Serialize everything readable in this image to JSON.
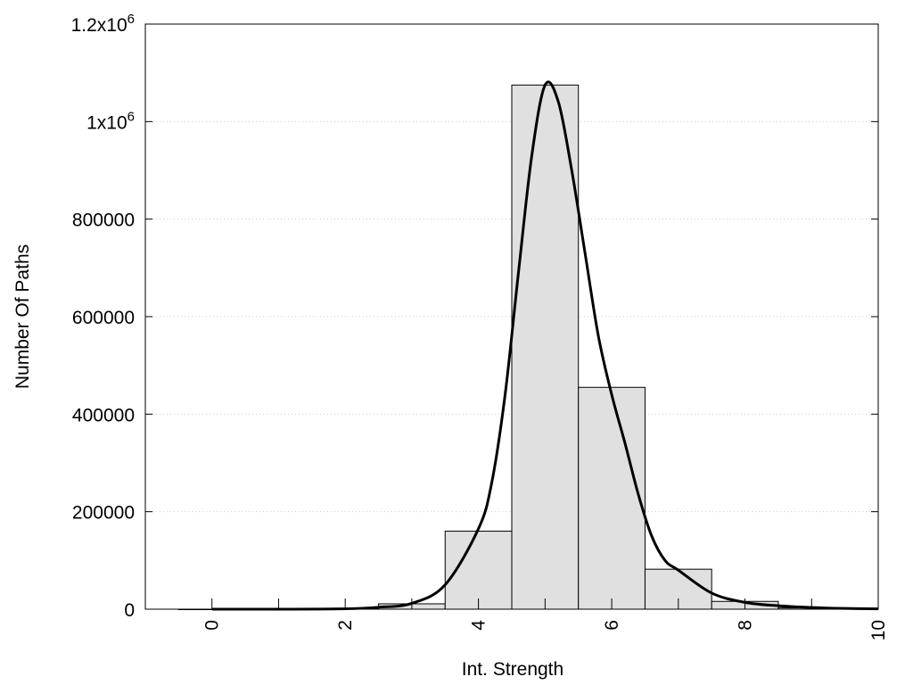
{
  "chart_data": {
    "type": "bar",
    "xlabel": "Int. Strength",
    "ylabel": "Number Of Paths",
    "xlim": [
      -1,
      10
    ],
    "ylim": [
      0,
      1200000
    ],
    "x_ticks": [
      {
        "value": 0,
        "label": "0"
      },
      {
        "value": 2,
        "label": "2"
      },
      {
        "value": 4,
        "label": "4"
      },
      {
        "value": 6,
        "label": "6"
      },
      {
        "value": 8,
        "label": "8"
      },
      {
        "value": 10,
        "label": "10"
      }
    ],
    "y_ticks": [
      {
        "value": 0,
        "label": "0",
        "sup": ""
      },
      {
        "value": 200000,
        "label": "200000",
        "sup": ""
      },
      {
        "value": 400000,
        "label": "400000",
        "sup": ""
      },
      {
        "value": 600000,
        "label": "600000",
        "sup": ""
      },
      {
        "value": 800000,
        "label": "800000",
        "sup": ""
      },
      {
        "value": 1000000,
        "label": "1x10",
        "sup": "6"
      },
      {
        "value": 1200000,
        "label": "1.2x10",
        "sup": "6"
      }
    ],
    "grid": "horizontal-dotted",
    "bar_width": 1,
    "bars": [
      {
        "x": 0,
        "value": 0
      },
      {
        "x": 1,
        "value": 0
      },
      {
        "x": 2,
        "value": 1000
      },
      {
        "x": 3,
        "value": 11000
      },
      {
        "x": 4,
        "value": 160000
      },
      {
        "x": 5,
        "value": 1075000
      },
      {
        "x": 6,
        "value": 455000
      },
      {
        "x": 7,
        "value": 82000
      },
      {
        "x": 8,
        "value": 16000
      },
      {
        "x": 9,
        "value": 2500
      }
    ],
    "curve": [
      [
        0,
        0
      ],
      [
        1,
        0
      ],
      [
        2,
        800
      ],
      [
        2.5,
        4000
      ],
      [
        3,
        12000
      ],
      [
        3.5,
        50000
      ],
      [
        4,
        165000
      ],
      [
        4.2,
        260000
      ],
      [
        4.4,
        440000
      ],
      [
        4.6,
        690000
      ],
      [
        4.8,
        930000
      ],
      [
        5,
        1075000
      ],
      [
        5.2,
        1040000
      ],
      [
        5.4,
        900000
      ],
      [
        5.6,
        730000
      ],
      [
        5.8,
        560000
      ],
      [
        6,
        440000
      ],
      [
        6.2,
        340000
      ],
      [
        6.4,
        235000
      ],
      [
        6.6,
        150000
      ],
      [
        6.8,
        100000
      ],
      [
        7,
        80000
      ],
      [
        7.5,
        33000
      ],
      [
        8,
        14000
      ],
      [
        8.5,
        7000
      ],
      [
        9,
        3500
      ],
      [
        9.5,
        1500
      ],
      [
        10,
        600
      ]
    ],
    "colors": {
      "bar_fill": "#e0e0e0",
      "bar_stroke": "#000000",
      "curve": "#000000",
      "grid": "#cccccc"
    }
  }
}
